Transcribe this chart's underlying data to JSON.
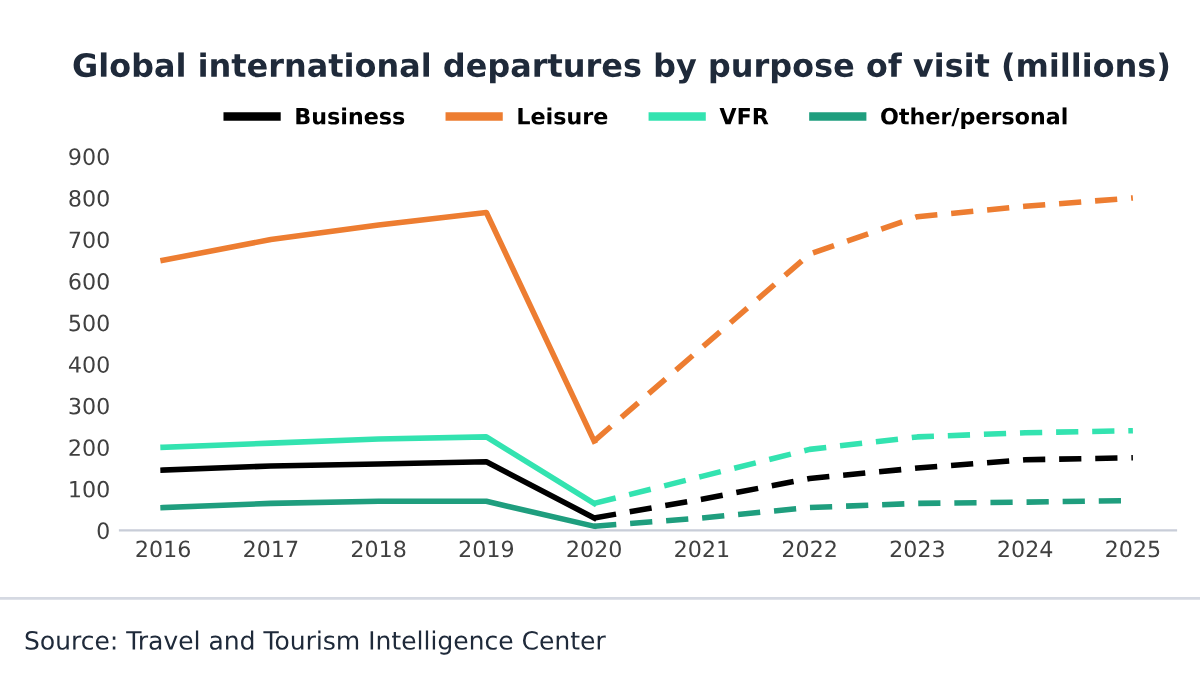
{
  "chart_data": {
    "type": "line",
    "title": "Global international departures by purpose of visit (millions)",
    "categories": [
      "2016",
      "2017",
      "2018",
      "2019",
      "2020",
      "2021",
      "2022",
      "2023",
      "2024",
      "2025"
    ],
    "series": [
      {
        "name": "Business",
        "color": "#000000",
        "line_style": "solid",
        "values": [
          145,
          155,
          160,
          165,
          30,
          null,
          null,
          null,
          null,
          null
        ]
      },
      {
        "name": "Leisure",
        "color": "#ed7d31",
        "line_style": "solid",
        "values": [
          650,
          700,
          735,
          765,
          215,
          null,
          null,
          null,
          null,
          null
        ]
      },
      {
        "name": "VFR",
        "color": "#33e3b0",
        "line_style": "solid",
        "values": [
          200,
          210,
          220,
          225,
          65,
          null,
          null,
          null,
          null,
          null
        ]
      },
      {
        "name": "Other/personal",
        "color": "#1f9e7e",
        "line_style": "solid",
        "values": [
          55,
          65,
          70,
          70,
          10,
          null,
          null,
          null,
          null,
          null
        ]
      },
      {
        "color": "#000000",
        "line_style": "dashed",
        "values": [
          null,
          null,
          null,
          null,
          30,
          75,
          125,
          150,
          170,
          175
        ]
      },
      {
        "color": "#ed7d31",
        "line_style": "dashed",
        "values": [
          null,
          null,
          null,
          null,
          215,
          440,
          665,
          755,
          780,
          800
        ]
      },
      {
        "color": "#33e3b0",
        "line_style": "dashed",
        "values": [
          null,
          null,
          null,
          null,
          65,
          130,
          195,
          225,
          235,
          240
        ]
      },
      {
        "color": "#1f9e7e",
        "line_style": "dashed",
        "values": [
          null,
          null,
          null,
          null,
          10,
          30,
          55,
          65,
          68,
          72
        ]
      }
    ],
    "ylim": [
      0,
      900
    ],
    "yticks": [
      0,
      100,
      200,
      300,
      400,
      500,
      600,
      700,
      800,
      900
    ],
    "legend": "top",
    "marker": "none",
    "annotations": [
      "Source: Travel and Tourism Intelligence Center"
    ]
  }
}
